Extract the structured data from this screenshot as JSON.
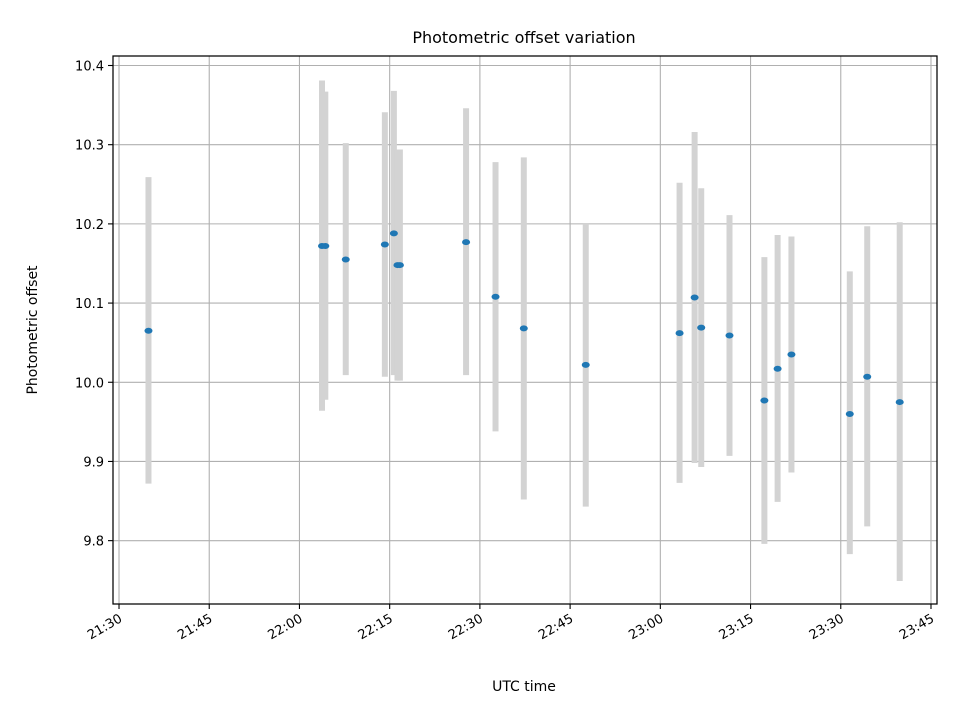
{
  "chart_data": {
    "type": "scatter",
    "title": "Photometric offset variation",
    "xlabel": "UTC time",
    "ylabel": "Photometric offset",
    "x_ticks": [
      "21:30",
      "21:45",
      "22:00",
      "22:15",
      "22:30",
      "22:45",
      "23:00",
      "23:15",
      "23:30",
      "23:45"
    ],
    "x_tick_values": [
      "21:30",
      "21:45",
      "22:00",
      "22:15",
      "22:30",
      "22:45",
      "23:00",
      "23:15",
      "23:30",
      "23:45"
    ],
    "y_ticks": [
      "9.8",
      "9.9",
      "10.0",
      "10.1",
      "10.2",
      "10.3",
      "10.4"
    ],
    "y_tick_values": [
      9.8,
      9.9,
      10.0,
      10.1,
      10.2,
      10.3,
      10.4
    ],
    "xlim": [
      "21:29",
      "23:46"
    ],
    "ylim": [
      9.72,
      10.412
    ],
    "grid": true,
    "marker_color": "#1f77b4",
    "errorbar_color": "#d3d3d3",
    "points": [
      {
        "x": "21:34:54",
        "y": 10.065,
        "ylow": 9.872,
        "yhigh": 10.259
      },
      {
        "x": "22:03:45",
        "y": 10.172,
        "ylow": 9.964,
        "yhigh": 10.381
      },
      {
        "x": "22:04:18",
        "y": 10.172,
        "ylow": 9.978,
        "yhigh": 10.367
      },
      {
        "x": "22:07:42",
        "y": 10.155,
        "ylow": 10.009,
        "yhigh": 10.302
      },
      {
        "x": "22:14:12",
        "y": 10.174,
        "ylow": 10.007,
        "yhigh": 10.341
      },
      {
        "x": "22:15:42",
        "y": 10.188,
        "ylow": 10.009,
        "yhigh": 10.368
      },
      {
        "x": "22:16:18",
        "y": 10.148,
        "ylow": 10.002,
        "yhigh": 10.294
      },
      {
        "x": "22:16:42",
        "y": 10.148,
        "ylow": 10.002,
        "yhigh": 10.294
      },
      {
        "x": "22:27:42",
        "y": 10.177,
        "ylow": 10.009,
        "yhigh": 10.346
      },
      {
        "x": "22:32:36",
        "y": 10.108,
        "ylow": 9.938,
        "yhigh": 10.278
      },
      {
        "x": "22:37:18",
        "y": 10.068,
        "ylow": 9.852,
        "yhigh": 10.284
      },
      {
        "x": "22:47:36",
        "y": 10.022,
        "ylow": 9.843,
        "yhigh": 10.2
      },
      {
        "x": "23:03:12",
        "y": 10.062,
        "ylow": 9.873,
        "yhigh": 10.252
      },
      {
        "x": "23:05:42",
        "y": 10.107,
        "ylow": 9.898,
        "yhigh": 10.316
      },
      {
        "x": "23:06:48",
        "y": 10.069,
        "ylow": 9.893,
        "yhigh": 10.245
      },
      {
        "x": "23:11:30",
        "y": 10.059,
        "ylow": 9.907,
        "yhigh": 10.211
      },
      {
        "x": "23:17:18",
        "y": 9.977,
        "ylow": 9.796,
        "yhigh": 10.158
      },
      {
        "x": "23:19:30",
        "y": 10.017,
        "ylow": 9.849,
        "yhigh": 10.186
      },
      {
        "x": "23:21:48",
        "y": 10.035,
        "ylow": 9.886,
        "yhigh": 10.184
      },
      {
        "x": "23:31:30",
        "y": 9.96,
        "ylow": 9.783,
        "yhigh": 10.14
      },
      {
        "x": "23:34:24",
        "y": 10.007,
        "ylow": 9.818,
        "yhigh": 10.197
      },
      {
        "x": "23:39:48",
        "y": 9.975,
        "ylow": 9.749,
        "yhigh": 10.202
      }
    ]
  }
}
